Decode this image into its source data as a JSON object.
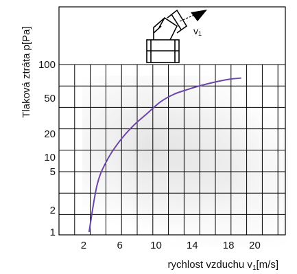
{
  "chart_data": {
    "type": "line",
    "title": "",
    "xlabel": "rychlost vzduchu v",
    "xlabel_sub": "1",
    "xlabel_unit": "[m/s]",
    "ylabel": "Tlaková ztráta p[Pa]",
    "xlim": [
      0,
      20
    ],
    "y_tick_labels": [
      "100",
      "50",
      "20",
      "10",
      "5",
      "2",
      "1"
    ],
    "y_tick_values": [
      100,
      50,
      20,
      10,
      5,
      2,
      1
    ],
    "x_tick_labels": [
      "2",
      "6",
      "10",
      "14",
      "18",
      "20"
    ],
    "x_tick_values": [
      2,
      6,
      10,
      14,
      18,
      20
    ],
    "series": [
      {
        "color": "#6a46a8",
        "x": [
          2.6,
          3.5,
          4.6,
          6.0,
          7.5,
          9.0,
          10.5,
          12.0,
          13.5,
          15.0,
          16.5,
          18.0,
          19.4
        ],
        "y": [
          1,
          4,
          9,
          17,
          27,
          37,
          47,
          56,
          63,
          69,
          74,
          78,
          80
        ]
      }
    ],
    "grid": true,
    "legend": "none"
  },
  "diagram": {
    "velocity_label": "v",
    "velocity_sub": "1"
  }
}
